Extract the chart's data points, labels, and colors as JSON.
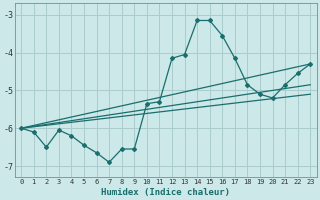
{
  "title": "",
  "xlabel": "Humidex (Indice chaleur)",
  "xlim": [
    -0.5,
    23.5
  ],
  "ylim": [
    -7.3,
    -2.7
  ],
  "yticks": [
    -7,
    -6,
    -5,
    -4,
    -3
  ],
  "xticks": [
    0,
    1,
    2,
    3,
    4,
    5,
    6,
    7,
    8,
    9,
    10,
    11,
    12,
    13,
    14,
    15,
    16,
    17,
    18,
    19,
    20,
    21,
    22,
    23
  ],
  "bg_color": "#cce8e8",
  "grid_color": "#aacccc",
  "line_color": "#1a6e6e",
  "lines": [
    {
      "x": [
        0,
        1,
        2,
        3,
        4,
        5,
        6,
        7,
        8,
        9,
        10,
        11,
        12,
        13,
        14,
        15,
        16,
        17,
        18,
        19,
        20,
        21,
        22,
        23
      ],
      "y": [
        -6.0,
        -6.1,
        -6.5,
        -6.05,
        -6.2,
        -6.45,
        -6.65,
        -6.9,
        -6.55,
        -6.55,
        -5.35,
        -5.3,
        -4.15,
        -4.05,
        -3.15,
        -3.15,
        -3.55,
        -4.15,
        -4.85,
        -5.1,
        -5.2,
        -4.85,
        -4.55,
        -4.3
      ],
      "markers": true
    },
    {
      "x": [
        0,
        23
      ],
      "y": [
        -6.0,
        -4.3
      ],
      "markers": false
    },
    {
      "x": [
        0,
        23
      ],
      "y": [
        -6.0,
        -4.85
      ],
      "markers": false
    },
    {
      "x": [
        0,
        23
      ],
      "y": [
        -6.0,
        -5.1
      ],
      "markers": false
    }
  ]
}
